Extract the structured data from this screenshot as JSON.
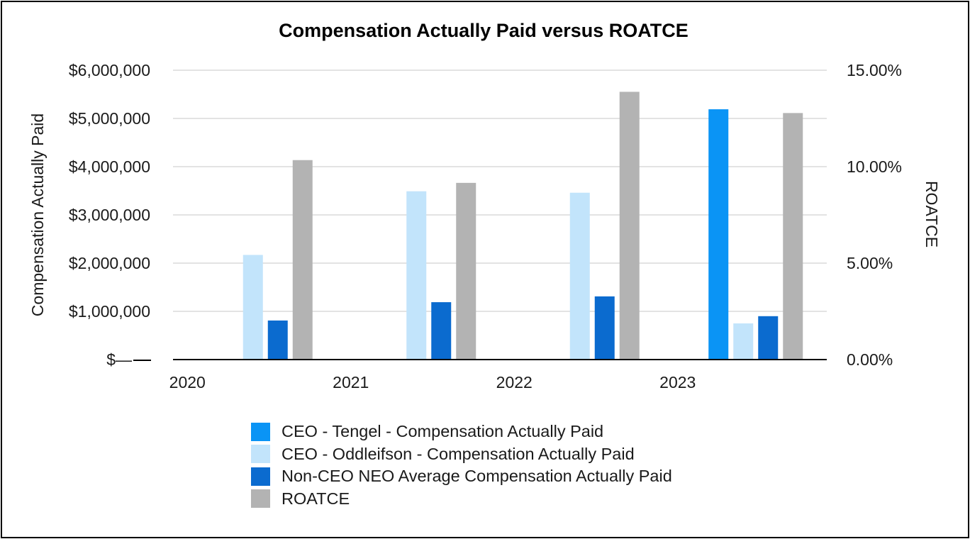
{
  "chart_data": {
    "type": "bar",
    "title": "Compensation Actually Paid versus ROATCE",
    "ylabel": "Compensation Actually Paid",
    "y2label": "ROATCE",
    "categories": [
      "2020",
      "2021",
      "2022",
      "2023"
    ],
    "ylim": [
      0,
      6000000
    ],
    "y2lim": [
      0,
      15
    ],
    "yticks": [
      {
        "value": 0,
        "label": "$—"
      },
      {
        "value": 1000000,
        "label": "$1,000,000"
      },
      {
        "value": 2000000,
        "label": "$2,000,000"
      },
      {
        "value": 3000000,
        "label": "$3,000,000"
      },
      {
        "value": 4000000,
        "label": "$4,000,000"
      },
      {
        "value": 5000000,
        "label": "$5,000,000"
      },
      {
        "value": 6000000,
        "label": "$6,000,000"
      }
    ],
    "y2ticks": [
      {
        "value": 0,
        "label": "0.00%"
      },
      {
        "value": 5,
        "label": "5.00%"
      },
      {
        "value": 10,
        "label": "10.00%"
      },
      {
        "value": 15,
        "label": "15.00%"
      }
    ],
    "grid": true,
    "legend_position": "bottom",
    "series": [
      {
        "name": "CEO - Tengel - Compensation Actually Paid",
        "axis": "left",
        "color": "#0a94f5",
        "values": [
          0,
          0,
          0,
          5190000
        ]
      },
      {
        "name": "CEO - Oddleifson - Compensation Actually Paid",
        "axis": "left",
        "color": "#c2e4fb",
        "values": [
          2170000,
          3490000,
          3460000,
          750000
        ]
      },
      {
        "name": "Non-CEO NEO Average Compensation Actually Paid",
        "axis": "left",
        "color": "#0b6bcf",
        "values": [
          810000,
          1190000,
          1310000,
          900000
        ]
      },
      {
        "name": "ROATCE",
        "axis": "right",
        "color": "#b3b3b3",
        "values": [
          10.34,
          9.16,
          13.88,
          12.78
        ]
      }
    ]
  }
}
